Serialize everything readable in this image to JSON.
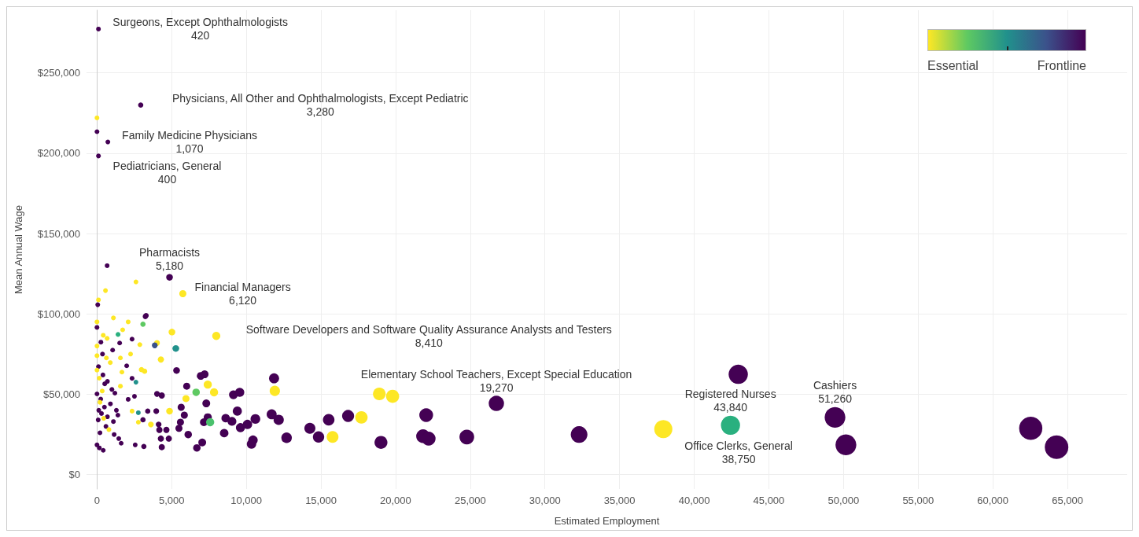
{
  "chart_data": {
    "type": "bubble",
    "xlabel": "Estimated Employment",
    "ylabel": "Mean Annual Wage",
    "xlim": [
      -700,
      69000
    ],
    "ylim": [
      -9000,
      289000
    ],
    "xticks": [
      0,
      {
        "value": 5000,
        "label": "5,000"
      },
      {
        "value": 10000,
        "label": "10,000"
      },
      {
        "value": 15000,
        "label": "15,000"
      },
      {
        "value": 20000,
        "label": "20,000"
      },
      {
        "value": 25000,
        "label": "25,000"
      },
      {
        "value": 30000,
        "label": "30,000"
      },
      {
        "value": 35000,
        "label": "35,000"
      },
      {
        "value": 40000,
        "label": "40,000"
      },
      {
        "value": 45000,
        "label": "45,000"
      },
      {
        "value": 50000,
        "label": "50,000"
      },
      {
        "value": 55000,
        "label": "55,000"
      },
      {
        "value": 60000,
        "label": "60,000"
      },
      {
        "value": 65000,
        "label": "65,000"
      }
    ],
    "yticks": [
      {
        "value": 0,
        "label": "$0"
      },
      {
        "value": 50000,
        "label": "$50,000"
      },
      {
        "value": 100000,
        "label": "$100,000"
      },
      {
        "value": 150000,
        "label": "$150,000"
      },
      {
        "value": 200000,
        "label": "$200,000"
      },
      {
        "value": 250000,
        "label": "$250,000"
      }
    ],
    "grid": true,
    "x": [
      100,
      2930,
      0,
      0,
      730,
      100,
      680,
      4860,
      2610,
      5750,
      570,
      100,
      50,
      3240,
      3290,
      1100,
      2090,
      3080,
      5020,
      7990,
      1720,
      1410,
      2350,
      4020,
      3870,
      2870,
      5280,
      1520,
      420,
      0,
      680,
      260,
      1050,
      2250,
      1570,
      4280,
      630,
      370,
      1990,
      890,
      100,
      2980,
      3190,
      5330,
      6950,
      7210,
      1670,
      2350,
      2610,
      7420,
      6010,
      6640,
      7840,
      1570,
      520,
      1200,
      4020,
      4340,
      2510,
      2090,
      0,
      5960,
      7320,
      5640,
      4860,
      3970,
      3400,
      2770,
      2350,
      5850,
      7420,
      8620,
      9040,
      7160,
      7580,
      5590,
      2770,
      3080,
      3610,
      4130,
      4650,
      4180,
      5490,
      6110,
      8520,
      4280,
      4810,
      7050,
      6690,
      4340,
      3140,
      2560,
      1620,
      1150,
      1460,
      0,
      420,
      160,
      120,
      300,
      500,
      700,
      900,
      1100,
      250,
      600,
      1300,
      80,
      200,
      450,
      800,
      150,
      350,
      1000,
      700,
      400,
      1400,
      200,
      0,
      0,
      0,
      0,
      11860,
      11910,
      9140,
      9560,
      9400,
      9610,
      10080,
      10610,
      10450,
      10350,
      11700,
      12170,
      12700,
      14260,
      14840,
      15520,
      15780,
      16820,
      17710,
      18910,
      19800,
      19020,
      22050,
      21840,
      22210,
      24770,
      26750,
      42950,
      32290,
      37930,
      42430,
      49430,
      50160,
      62540,
      64270
    ],
    "values": [
      277300,
      230000,
      222000,
      213400,
      207000,
      198300,
      130000,
      122800,
      119900,
      112600,
      114500,
      108700,
      105700,
      98400,
      99000,
      97500,
      95000,
      93600,
      88700,
      86300,
      90100,
      87200,
      84300,
      81900,
      80400,
      80900,
      78500,
      81900,
      86700,
      91600,
      84800,
      82400,
      77500,
      75000,
      72600,
      71600,
      72600,
      75000,
      67700,
      69700,
      67200,
      65300,
      64300,
      64800,
      61400,
      62400,
      63800,
      59900,
      57500,
      56000,
      55000,
      51200,
      51200,
      55000,
      56500,
      50700,
      50200,
      49200,
      48700,
      46800,
      50200,
      47300,
      44300,
      41900,
      39500,
      39500,
      39500,
      38500,
      39500,
      37000,
      35600,
      35100,
      33100,
      32600,
      32600,
      32600,
      32600,
      34100,
      31200,
      31200,
      27800,
      27800,
      28800,
      24900,
      25800,
      22400,
      22400,
      20000,
      16600,
      17100,
      17500,
      18500,
      19500,
      24900,
      22400,
      18500,
      15100,
      16600,
      40000,
      38000,
      42000,
      36000,
      44000,
      33000,
      47000,
      30000,
      40000,
      34000,
      45000,
      35000,
      28000,
      60000,
      52000,
      53000,
      58000,
      62000,
      37000,
      26000,
      95000,
      80000,
      74000,
      65000,
      59900,
      52100,
      49700,
      51200,
      39500,
      29200,
      31200,
      34600,
      21400,
      19000,
      37500,
      34100,
      22900,
      28800,
      23400,
      34100,
      23400,
      36500,
      35600,
      50200,
      48700,
      20000,
      37000,
      23900,
      22400,
      23400,
      44300,
      62400,
      24900,
      28300,
      30700,
      35600,
      18500,
      28800,
      17100
    ],
    "sizes": [
      0.04,
      0.05,
      0.04,
      0.04,
      0.04,
      0.04,
      0.04,
      0.08,
      0.04,
      0.09,
      0.04,
      0.04,
      0.04,
      0.05,
      0.05,
      0.04,
      0.04,
      0.05,
      0.08,
      0.12,
      0.04,
      0.04,
      0.04,
      0.06,
      0.06,
      0.04,
      0.08,
      0.04,
      0.04,
      0.04,
      0.04,
      0.04,
      0.04,
      0.04,
      0.04,
      0.07,
      0.04,
      0.04,
      0.04,
      0.04,
      0.04,
      0.05,
      0.05,
      0.08,
      0.11,
      0.11,
      0.04,
      0.04,
      0.04,
      0.12,
      0.09,
      0.1,
      0.12,
      0.04,
      0.04,
      0.04,
      0.06,
      0.07,
      0.04,
      0.04,
      0.04,
      0.09,
      0.11,
      0.09,
      0.08,
      0.06,
      0.05,
      0.04,
      0.04,
      0.09,
      0.12,
      0.13,
      0.14,
      0.11,
      0.12,
      0.09,
      0.04,
      0.05,
      0.06,
      0.06,
      0.07,
      0.07,
      0.09,
      0.1,
      0.13,
      0.07,
      0.07,
      0.11,
      0.1,
      0.07,
      0.05,
      0.04,
      0.04,
      0.04,
      0.04,
      0.04,
      0.04,
      0.04,
      0.04,
      0.04,
      0.04,
      0.04,
      0.04,
      0.04,
      0.04,
      0.04,
      0.04,
      0.04,
      0.04,
      0.04,
      0.04,
      0.04,
      0.04,
      0.04,
      0.04,
      0.04,
      0.04,
      0.04,
      0.04,
      0.04,
      0.04,
      0.04,
      0.18,
      0.19,
      0.14,
      0.15,
      0.15,
      0.15,
      0.16,
      0.17,
      0.16,
      0.16,
      0.18,
      0.19,
      0.2,
      0.22,
      0.23,
      0.24,
      0.25,
      0.26,
      0.28,
      0.29,
      0.31,
      0.3,
      0.34,
      0.34,
      0.35,
      0.39,
      0.42,
      0.67,
      0.5,
      0.59,
      0.66,
      0.77,
      0.78,
      0.97,
      1
    ],
    "colors": [
      "#440154",
      "#440154",
      "#fde725",
      "#440154",
      "#440154",
      "#440154",
      "#440154",
      "#440154",
      "#fde725",
      "#fde725",
      "#fde725",
      "#fde725",
      "#440154",
      "#440154",
      "#440154",
      "#fde725",
      "#fde725",
      "#5ec962",
      "#fde725",
      "#fde725",
      "#fde725",
      "#2ab07f",
      "#440154",
      "#fde725",
      "#3b528b",
      "#fde725",
      "#21918c",
      "#440154",
      "#fde725",
      "#440154",
      "#fde725",
      "#440154",
      "#440154",
      "#fde725",
      "#fde725",
      "#fde725",
      "#fde725",
      "#440154",
      "#440154",
      "#fde725",
      "#440154",
      "#fde725",
      "#fde725",
      "#440154",
      "#440154",
      "#440154",
      "#fde725",
      "#440154",
      "#21918c",
      "#fde725",
      "#440154",
      "#5ec962",
      "#fde725",
      "#fde725",
      "#440154",
      "#440154",
      "#440154",
      "#440154",
      "#440154",
      "#440154",
      "#440154",
      "#fde725",
      "#440154",
      "#440154",
      "#fde725",
      "#440154",
      "#440154",
      "#21918c",
      "#fde725",
      "#440154",
      "#440154",
      "#440154",
      "#440154",
      "#440154",
      "#4ac16d",
      "#440154",
      "#fde725",
      "#440154",
      "#fde725",
      "#440154",
      "#440154",
      "#440154",
      "#440154",
      "#440154",
      "#440154",
      "#440154",
      "#440154",
      "#440154",
      "#440154",
      "#440154",
      "#440154",
      "#440154",
      "#440154",
      "#440154",
      "#440154",
      "#440154",
      "#440154",
      "#440154",
      "#440154",
      "#440154",
      "#440154",
      "#440154",
      "#440154",
      "#440154",
      "#440154",
      "#440154",
      "#440154",
      "#440154",
      "#fde725",
      "#fde725",
      "#fde725",
      "#fde725",
      "#fde725",
      "#440154",
      "#440154",
      "#440154",
      "#440154",
      "#440154",
      "#fde725",
      "#fde725",
      "#fde725",
      "#fde725",
      "#440154",
      "#fde725",
      "#440154",
      "#440154",
      "#440154",
      "#440154",
      "#440154",
      "#440154",
      "#440154",
      "#440154",
      "#440154",
      "#440154",
      "#440154",
      "#440154",
      "#440154",
      "#440154",
      "#fde725",
      "#440154",
      "#fde725",
      "#fde725",
      "#fde725",
      "#440154",
      "#440154",
      "#440154",
      "#440154",
      "#440154",
      "#440154",
      "#440154",
      "#440154",
      "#fde725",
      "#2ab07f",
      "#440154",
      "#440154",
      "#440154",
      "#440154"
    ],
    "annotations": [
      {
        "text": "Surgeons, Except Ophthalmologists\n420",
        "x": 100,
        "y": 277300
      },
      {
        "text": "Physicians, All Other and Ophthalmologists, Except Pediatric\n3,280",
        "x": 2930,
        "y": 230000
      },
      {
        "text": "Family Medicine Physicians\n1,070",
        "x": 730,
        "y": 207000
      },
      {
        "text": "Pediatricians, General\n400",
        "x": 100,
        "y": 198300
      },
      {
        "text": "Pharmacists\n5,180",
        "x": 4860,
        "y": 122800
      },
      {
        "text": "Financial Managers\n6,120",
        "x": 5750,
        "y": 112600
      },
      {
        "text": "Software Developers and Software Quality Assurance Analysts and Testers\n8,410",
        "x": 7990,
        "y": 86300
      },
      {
        "text": "Elementary School Teachers, Except Special Education\n19,270",
        "x": 26750,
        "y": 44300
      },
      {
        "text": "Office Clerks, General\n38,750",
        "x": 37930,
        "y": 28300
      },
      {
        "text": "Registered Nurses\n43,840",
        "x": 42430,
        "y": 30700
      },
      {
        "text": "Cashiers\n51,260",
        "x": 49430,
        "y": 35600
      },
      "Essential",
      "Frontline"
    ]
  }
}
